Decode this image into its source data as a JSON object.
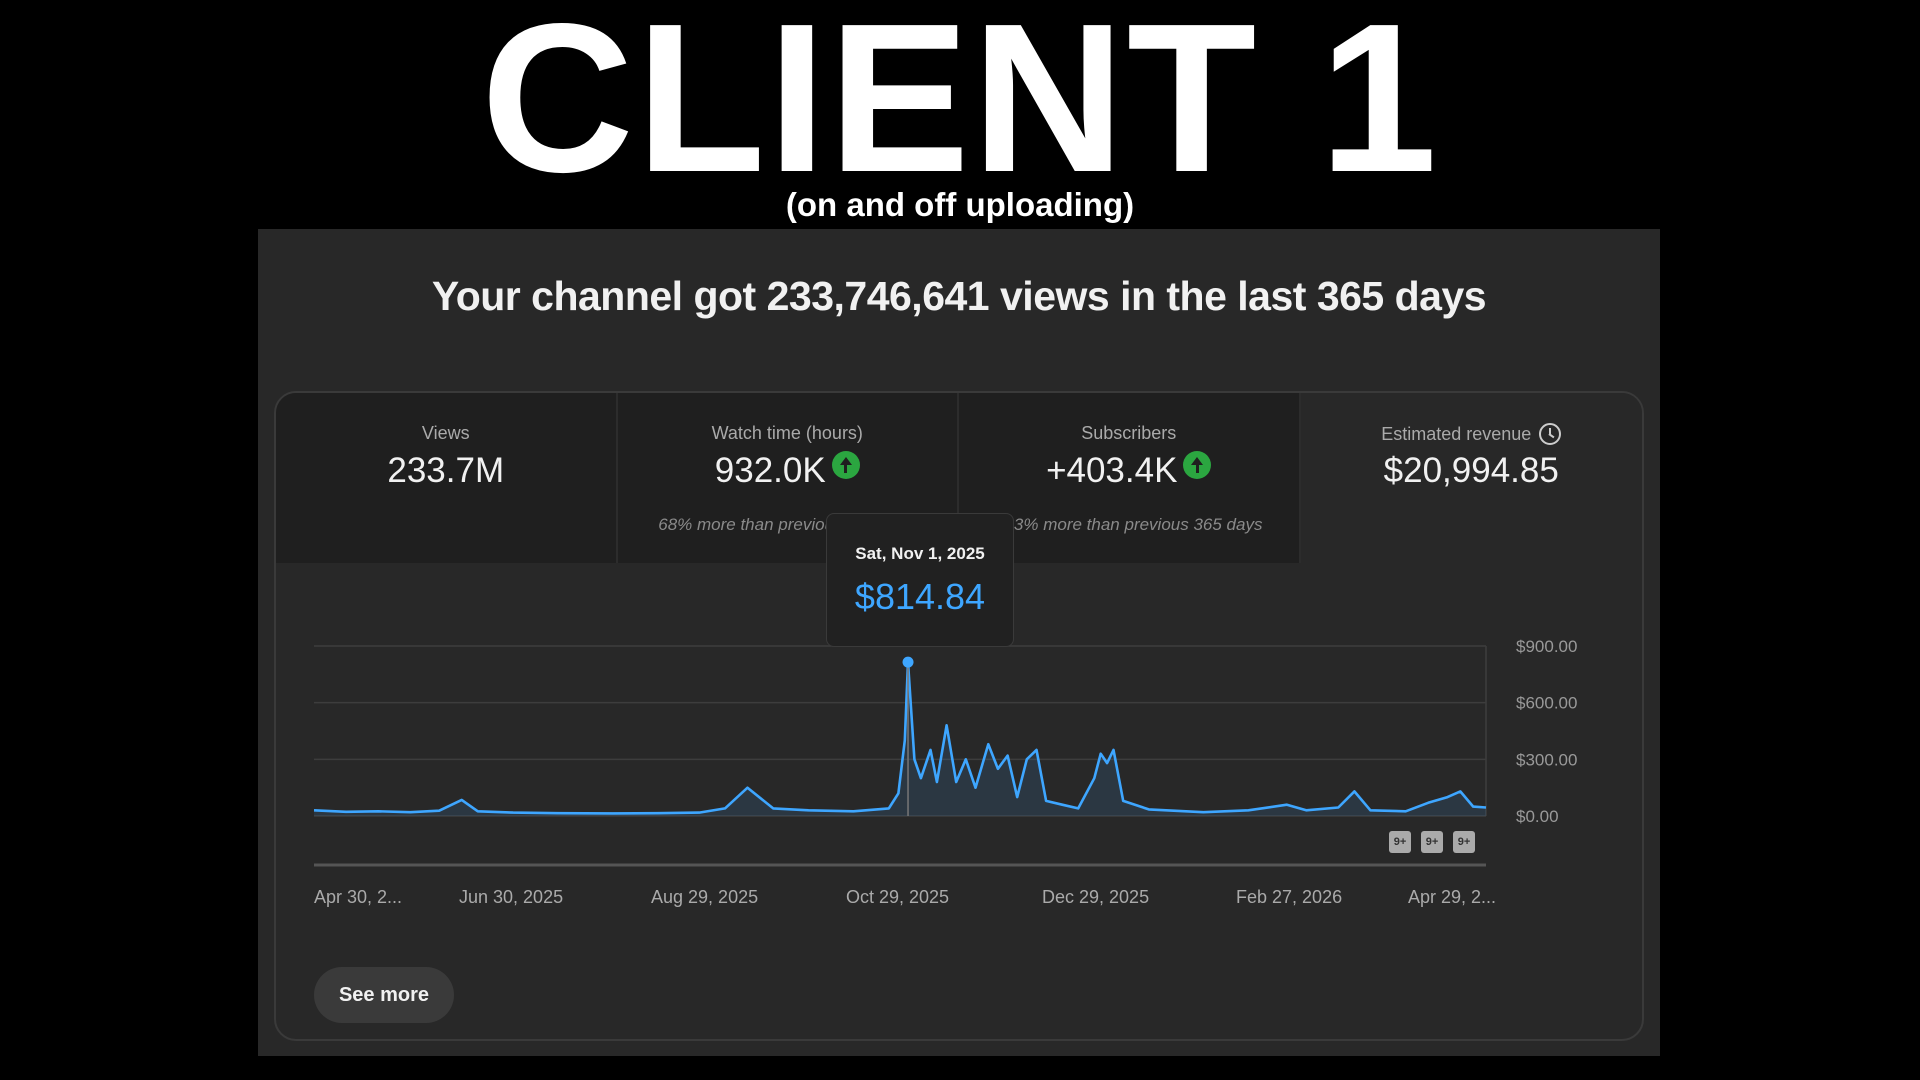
{
  "banner": {
    "title": "CLIENT 1",
    "subtitle": "(on and off uploading)"
  },
  "headline": "Your channel got 233,746,641 views in the last 365 days",
  "metrics": [
    {
      "label": "Views",
      "value": "233.7M",
      "sub": ""
    },
    {
      "label": "Watch time (hours)",
      "value": "932.0K",
      "sub": "68% more than previous 365 days",
      "trend_icon": "up-arrow-icon"
    },
    {
      "label": "Subscribers",
      "value": "+403.4K",
      "sub": "223% more than previous 365 days",
      "trend_icon": "up-arrow-icon"
    },
    {
      "label": "Estimated revenue",
      "value": "$20,994.85",
      "sub": "",
      "info_icon": "clock-icon"
    }
  ],
  "tooltip": {
    "date": "Sat, Nov 1, 2025",
    "value": "$814.84"
  },
  "see_more_label": "See more",
  "badges": [
    "9+",
    "9+",
    "9+"
  ],
  "colors": {
    "line": "#3ea6ff",
    "up": "#2ba640",
    "background": "#282828"
  },
  "chart_data": {
    "type": "area",
    "x_tick_labels": [
      "Apr 30, 2...",
      "Jun 30, 2025",
      "Aug 29, 2025",
      "Oct 29, 2025",
      "Dec 29, 2025",
      "Feb 27, 2026",
      "Apr 29, 2..."
    ],
    "y_tick_labels": [
      "$900.00",
      "$600.00",
      "$300.00",
      "$0.00"
    ],
    "ylim": [
      0,
      900
    ],
    "y_ticks": [
      0,
      300,
      600,
      900
    ],
    "x_range": [
      "2025-04-30",
      "2026-04-30"
    ],
    "grid": true,
    "highlight": {
      "x": "2025-11-01",
      "y": 814.84
    },
    "series": [
      {
        "points": [
          [
            "2025-04-30",
            30
          ],
          [
            "2025-05-10",
            22
          ],
          [
            "2025-05-20",
            25
          ],
          [
            "2025-05-30",
            20
          ],
          [
            "2025-06-08",
            28
          ],
          [
            "2025-06-15",
            85
          ],
          [
            "2025-06-20",
            25
          ],
          [
            "2025-07-01",
            18
          ],
          [
            "2025-07-15",
            15
          ],
          [
            "2025-08-01",
            14
          ],
          [
            "2025-08-15",
            15
          ],
          [
            "2025-08-28",
            18
          ],
          [
            "2025-09-05",
            40
          ],
          [
            "2025-09-12",
            150
          ],
          [
            "2025-09-20",
            40
          ],
          [
            "2025-10-01",
            30
          ],
          [
            "2025-10-15",
            25
          ],
          [
            "2025-10-26",
            40
          ],
          [
            "2025-10-29",
            120
          ],
          [
            "2025-10-31",
            400
          ],
          [
            "2025-11-01",
            814.84
          ],
          [
            "2025-11-03",
            300
          ],
          [
            "2025-11-05",
            200
          ],
          [
            "2025-11-08",
            350
          ],
          [
            "2025-11-10",
            180
          ],
          [
            "2025-11-13",
            480
          ],
          [
            "2025-11-16",
            180
          ],
          [
            "2025-11-19",
            300
          ],
          [
            "2025-11-22",
            150
          ],
          [
            "2025-11-26",
            380
          ],
          [
            "2025-11-29",
            250
          ],
          [
            "2025-12-02",
            320
          ],
          [
            "2025-12-05",
            100
          ],
          [
            "2025-12-08",
            300
          ],
          [
            "2025-12-11",
            350
          ],
          [
            "2025-12-14",
            80
          ],
          [
            "2025-12-19",
            60
          ],
          [
            "2025-12-24",
            40
          ],
          [
            "2025-12-29",
            200
          ],
          [
            "2025-12-31",
            330
          ],
          [
            "2026-01-02",
            280
          ],
          [
            "2026-01-04",
            350
          ],
          [
            "2026-01-07",
            80
          ],
          [
            "2026-01-15",
            35
          ],
          [
            "2026-02-01",
            20
          ],
          [
            "2026-02-15",
            30
          ],
          [
            "2026-02-27",
            60
          ],
          [
            "2026-03-05",
            30
          ],
          [
            "2026-03-15",
            45
          ],
          [
            "2026-03-20",
            130
          ],
          [
            "2026-03-25",
            30
          ],
          [
            "2026-04-05",
            25
          ],
          [
            "2026-04-12",
            70
          ],
          [
            "2026-04-18",
            100
          ],
          [
            "2026-04-22",
            130
          ],
          [
            "2026-04-26",
            50
          ],
          [
            "2026-04-30",
            45
          ]
        ]
      }
    ]
  }
}
